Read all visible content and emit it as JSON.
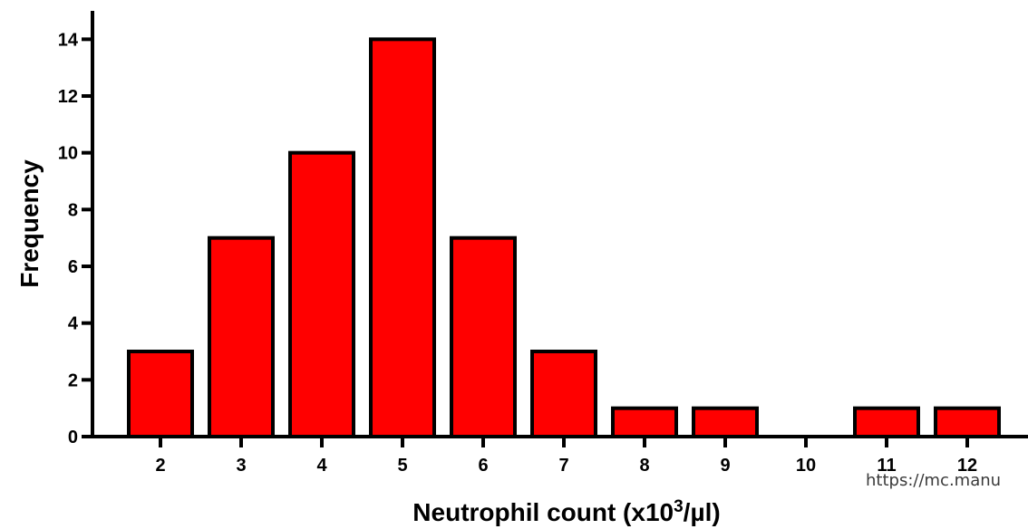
{
  "chart_data": {
    "type": "bar",
    "categories": [
      "2",
      "3",
      "4",
      "5",
      "6",
      "7",
      "8",
      "9",
      "10",
      "11",
      "12"
    ],
    "values": [
      3,
      7,
      10,
      14,
      7,
      3,
      1,
      1,
      0,
      1,
      1
    ],
    "xlabel_main": "Neutrophil count (x10",
    "xlabel_sup": "3",
    "xlabel_tail": "/µl)",
    "ylabel": "Frequency",
    "ylim": [
      0,
      15
    ],
    "yticks": [
      "0",
      "2",
      "4",
      "6",
      "8",
      "10",
      "12",
      "14"
    ],
    "bar_color": "#ff0000",
    "edge_color": "#000000",
    "grid": false
  },
  "watermark": "https://mc.manu"
}
